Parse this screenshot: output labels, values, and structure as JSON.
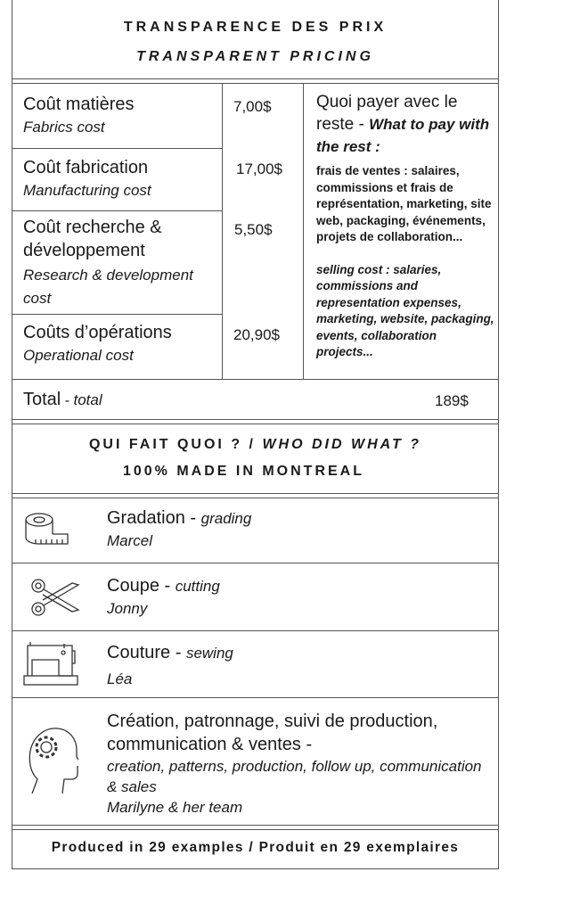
{
  "header": {
    "title_fr": "TRANSPARENCE DES PRIX",
    "title_en": "TRANSPARENT PRICING"
  },
  "costs": [
    {
      "fr": "Coût matières",
      "en": "Fabrics cost",
      "value": "7,00$"
    },
    {
      "fr": "Coût fabrication",
      "en": "Manufacturing cost",
      "value": "17,00$"
    },
    {
      "fr": "Coût recherche & développement",
      "en": "Research & development cost",
      "value": "5,50$"
    },
    {
      "fr": "Coûts d’opérations",
      "en": "Operational cost",
      "value": "20,90$"
    }
  ],
  "rest": {
    "title_fr": "Quoi payer avec le reste - ",
    "title_en": "What to pay with the rest :",
    "desc_fr": "frais de ventes : salaires, commissions et frais de représentation, marketing, site web, packaging, événements, projets de collaboration...",
    "desc_en": "selling cost : salaries, commissions and representation expenses, marketing, website, packaging, events, collaboration projects..."
  },
  "total": {
    "fr": "Total",
    "en": "total",
    "value": "189$",
    "sep": " - "
  },
  "who": {
    "title_fr": "QUI FAIT QUOI ? / ",
    "title_en": "WHO DID WHAT ?",
    "subtitle": "100% MADE IN MONTREAL"
  },
  "roles": [
    {
      "fr": "Gradation",
      "en": "grading",
      "person": "Marcel",
      "icon": "measuring-tape-icon"
    },
    {
      "fr": "Coupe",
      "en": "cutting",
      "person": "Jonny",
      "icon": "scissors-icon"
    },
    {
      "fr": "Couture",
      "en": "sewing",
      "person": "Léa",
      "icon": "sewing-machine-icon"
    },
    {
      "fr": "Création, patronnage, suivi de production, communication & ventes",
      "en": "creation, patterns, production, follow up, communication & sales",
      "person": "Marilyne & her team",
      "icon": "head-gear-icon"
    }
  ],
  "sep": " - ",
  "footer": "Produced in 29 examples / Produit en 29 exemplaires"
}
